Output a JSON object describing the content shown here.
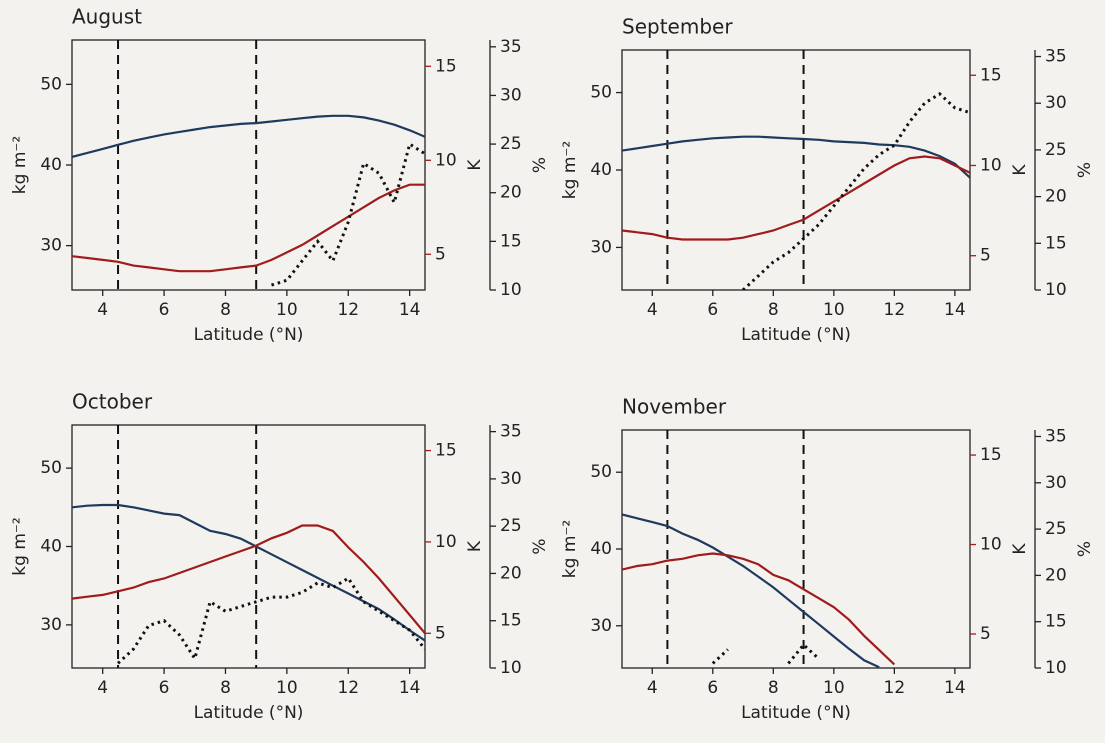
{
  "chart_data": [
    {
      "type": "line",
      "title": "August",
      "xlabel": "Latitude (°N)",
      "ylabel": "kg m⁻²",
      "y2label": "K",
      "y3label": "%",
      "x": [
        3,
        3.5,
        4,
        4.5,
        5,
        5.5,
        6,
        6.5,
        7,
        7.5,
        8,
        8.5,
        9,
        9.5,
        10,
        10.5,
        11,
        11.5,
        12,
        12.5,
        13,
        13.5,
        14,
        14.5
      ],
      "xlim": [
        3,
        14.5
      ],
      "xticks": [
        4,
        6,
        8,
        10,
        12,
        14
      ],
      "ylim": [
        24.5,
        55.5
      ],
      "yticks": [
        30,
        40,
        50
      ],
      "y2lim": [
        3.1,
        16.4
      ],
      "y2ticks": [
        5,
        10,
        15
      ],
      "y3lim": [
        10,
        35.7
      ],
      "y3ticks": [
        10,
        15,
        20,
        25,
        30,
        35
      ],
      "vlines": [
        4.5,
        9
      ],
      "series": [
        {
          "color": "#1f3a5f",
          "axis": "y",
          "values": [
            41.0,
            41.5,
            42.0,
            42.5,
            43.0,
            43.4,
            43.8,
            44.1,
            44.4,
            44.7,
            44.9,
            45.1,
            45.2,
            45.4,
            45.6,
            45.8,
            46.0,
            46.1,
            46.1,
            45.9,
            45.5,
            45.0,
            44.3,
            43.5
          ]
        },
        {
          "color": "#a01c1c",
          "axis": "y2",
          "values": [
            4.9,
            4.8,
            4.7,
            4.6,
            4.4,
            4.3,
            4.2,
            4.1,
            4.1,
            4.1,
            4.2,
            4.3,
            4.4,
            4.7,
            5.1,
            5.5,
            6.0,
            6.5,
            7.0,
            7.5,
            8.0,
            8.4,
            8.7,
            8.7
          ]
        },
        {
          "color": "#111111",
          "axis": "y3",
          "dash": "dotted",
          "values": [
            null,
            null,
            null,
            null,
            null,
            null,
            null,
            null,
            null,
            null,
            null,
            null,
            null,
            10.5,
            11,
            13,
            15,
            13,
            17,
            23,
            22,
            19,
            25,
            24
          ]
        }
      ]
    },
    {
      "type": "line",
      "title": "September",
      "xlabel": "Latitude (°N)",
      "ylabel": "kg m⁻²",
      "y2label": "K",
      "y3label": "%",
      "x": [
        3,
        3.5,
        4,
        4.5,
        5,
        5.5,
        6,
        6.5,
        7,
        7.5,
        8,
        8.5,
        9,
        9.5,
        10,
        10.5,
        11,
        11.5,
        12,
        12.5,
        13,
        13.5,
        14,
        14.5
      ],
      "xlim": [
        3,
        14.5
      ],
      "xticks": [
        4,
        6,
        8,
        10,
        12,
        14
      ],
      "ylim": [
        24.5,
        55.5
      ],
      "yticks": [
        30,
        40,
        50
      ],
      "y2lim": [
        3.1,
        16.4
      ],
      "y2ticks": [
        5,
        10,
        15
      ],
      "y3lim": [
        10,
        35.7
      ],
      "y3ticks": [
        10,
        15,
        20,
        25,
        30,
        35
      ],
      "vlines": [
        4.5,
        9
      ],
      "series": [
        {
          "color": "#1f3a5f",
          "axis": "y",
          "values": [
            42.5,
            42.8,
            43.1,
            43.4,
            43.7,
            43.9,
            44.1,
            44.2,
            44.3,
            44.3,
            44.2,
            44.1,
            44.0,
            43.9,
            43.7,
            43.6,
            43.5,
            43.3,
            43.2,
            43.0,
            42.5,
            41.8,
            40.8,
            39.0
          ]
        },
        {
          "color": "#a01c1c",
          "axis": "y2",
          "values": [
            6.4,
            6.3,
            6.2,
            6.0,
            5.9,
            5.9,
            5.9,
            5.9,
            6.0,
            6.2,
            6.4,
            6.7,
            7.0,
            7.5,
            8.0,
            8.5,
            9.0,
            9.5,
            10.0,
            10.4,
            10.5,
            10.4,
            10.0,
            9.6
          ]
        },
        {
          "color": "#111111",
          "axis": "y3",
          "dash": "dotted",
          "values": [
            null,
            null,
            null,
            null,
            null,
            null,
            null,
            null,
            10,
            11.5,
            13,
            14,
            15.5,
            17,
            19,
            21,
            23,
            24.5,
            25.5,
            28,
            30,
            31,
            29.5,
            29
          ]
        }
      ]
    },
    {
      "type": "line",
      "title": "October",
      "xlabel": "Latitude (°N)",
      "ylabel": "kg m⁻²",
      "y2label": "K",
      "y3label": "%",
      "x": [
        3,
        3.5,
        4,
        4.5,
        5,
        5.5,
        6,
        6.5,
        7,
        7.5,
        8,
        8.5,
        9,
        9.5,
        10,
        10.5,
        11,
        11.5,
        12,
        12.5,
        13,
        13.5,
        14,
        14.5
      ],
      "xlim": [
        3,
        14.5
      ],
      "xticks": [
        4,
        6,
        8,
        10,
        12,
        14
      ],
      "ylim": [
        24.5,
        55.5
      ],
      "yticks": [
        30,
        40,
        50
      ],
      "y2lim": [
        3.1,
        16.4
      ],
      "y2ticks": [
        5,
        10,
        15
      ],
      "y3lim": [
        10,
        35.7
      ],
      "y3ticks": [
        10,
        15,
        20,
        25,
        30,
        35
      ],
      "vlines": [
        4.5,
        9
      ],
      "series": [
        {
          "color": "#1f3a5f",
          "axis": "y",
          "values": [
            45.0,
            45.2,
            45.3,
            45.3,
            45.0,
            44.6,
            44.2,
            44.0,
            43.0,
            42.0,
            41.6,
            41.0,
            40.0,
            39.0,
            38.0,
            37.0,
            36.0,
            35.0,
            34.0,
            33.0,
            32.0,
            30.7,
            29.3,
            28.0
          ]
        },
        {
          "color": "#a01c1c",
          "axis": "y2",
          "values": [
            6.9,
            7.0,
            7.1,
            7.3,
            7.5,
            7.8,
            8.0,
            8.3,
            8.6,
            8.9,
            9.2,
            9.5,
            9.8,
            10.2,
            10.5,
            10.9,
            10.9,
            10.6,
            9.7,
            8.9,
            8.0,
            7.0,
            6.0,
            5.0
          ]
        },
        {
          "color": "#111111",
          "axis": "y3",
          "dash": "dotted",
          "values": [
            null,
            null,
            null,
            10.5,
            12,
            14.5,
            15,
            13.5,
            11,
            17,
            16,
            16.5,
            17,
            17.5,
            17.5,
            18,
            19,
            18.5,
            19.5,
            17,
            16,
            15,
            14,
            12
          ]
        }
      ]
    },
    {
      "type": "line",
      "title": "November",
      "xlabel": "Latitude (°N)",
      "ylabel": "kg m⁻²",
      "y2label": "K",
      "y3label": "%",
      "x": [
        3,
        3.5,
        4,
        4.5,
        5,
        5.5,
        6,
        6.5,
        7,
        7.5,
        8,
        8.5,
        9,
        9.5,
        10,
        10.5,
        11,
        11.5,
        12,
        12.5,
        13,
        13.5,
        14,
        14.5
      ],
      "xlim": [
        3,
        14.5
      ],
      "xticks": [
        4,
        6,
        8,
        10,
        12,
        14
      ],
      "ylim": [
        24.5,
        55.5
      ],
      "yticks": [
        30,
        40,
        50
      ],
      "y2lim": [
        3.1,
        16.4
      ],
      "y2ticks": [
        5,
        10,
        15
      ],
      "y3lim": [
        10,
        35.7
      ],
      "y3ticks": [
        10,
        15,
        20,
        25,
        30,
        35
      ],
      "vlines": [
        4.5,
        9
      ],
      "series": [
        {
          "color": "#1f3a5f",
          "axis": "y",
          "values": [
            44.5,
            44.0,
            43.5,
            43.0,
            42.0,
            41.2,
            40.2,
            39.0,
            37.8,
            36.4,
            35.0,
            33.4,
            31.8,
            30.2,
            28.6,
            27.0,
            25.5,
            24.6,
            null,
            null,
            null,
            null,
            null,
            null
          ]
        },
        {
          "color": "#a01c1c",
          "axis": "y2",
          "values": [
            8.6,
            8.8,
            8.9,
            9.1,
            9.2,
            9.4,
            9.5,
            9.4,
            9.2,
            8.9,
            8.3,
            8.0,
            7.5,
            7.0,
            6.5,
            5.8,
            4.9,
            4.1,
            3.3,
            null,
            null,
            null,
            null,
            null
          ]
        },
        {
          "color": "#111111",
          "axis": "y3",
          "dash": "dotted",
          "values": [
            null,
            null,
            null,
            null,
            null,
            null,
            10.5,
            12,
            null,
            null,
            null,
            10.5,
            12.5,
            11,
            null,
            null,
            null,
            null,
            null,
            null,
            null,
            null,
            null,
            null
          ]
        }
      ]
    }
  ]
}
